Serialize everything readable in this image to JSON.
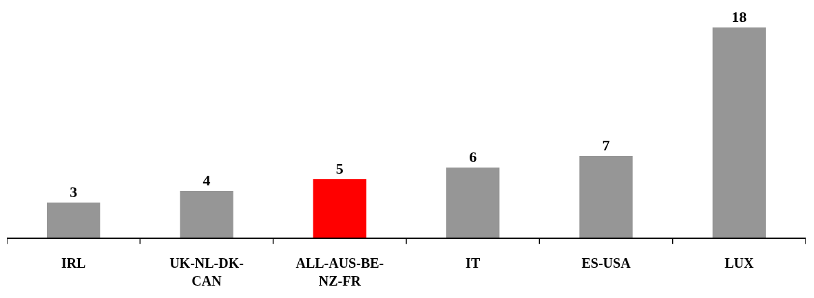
{
  "chart_data": {
    "type": "bar",
    "categories": [
      "IRL",
      "UK-NL-DK-CAN",
      "ALL-AUS-BE-NZ-FR",
      "IT",
      "ES-USA",
      "LUX"
    ],
    "values": [
      3,
      4,
      5,
      6,
      7,
      18
    ],
    "colors": [
      "#969696",
      "#969696",
      "#ff0000",
      "#969696",
      "#969696",
      "#969696"
    ],
    "data_labels": true,
    "tick_labels": "x"
  }
}
